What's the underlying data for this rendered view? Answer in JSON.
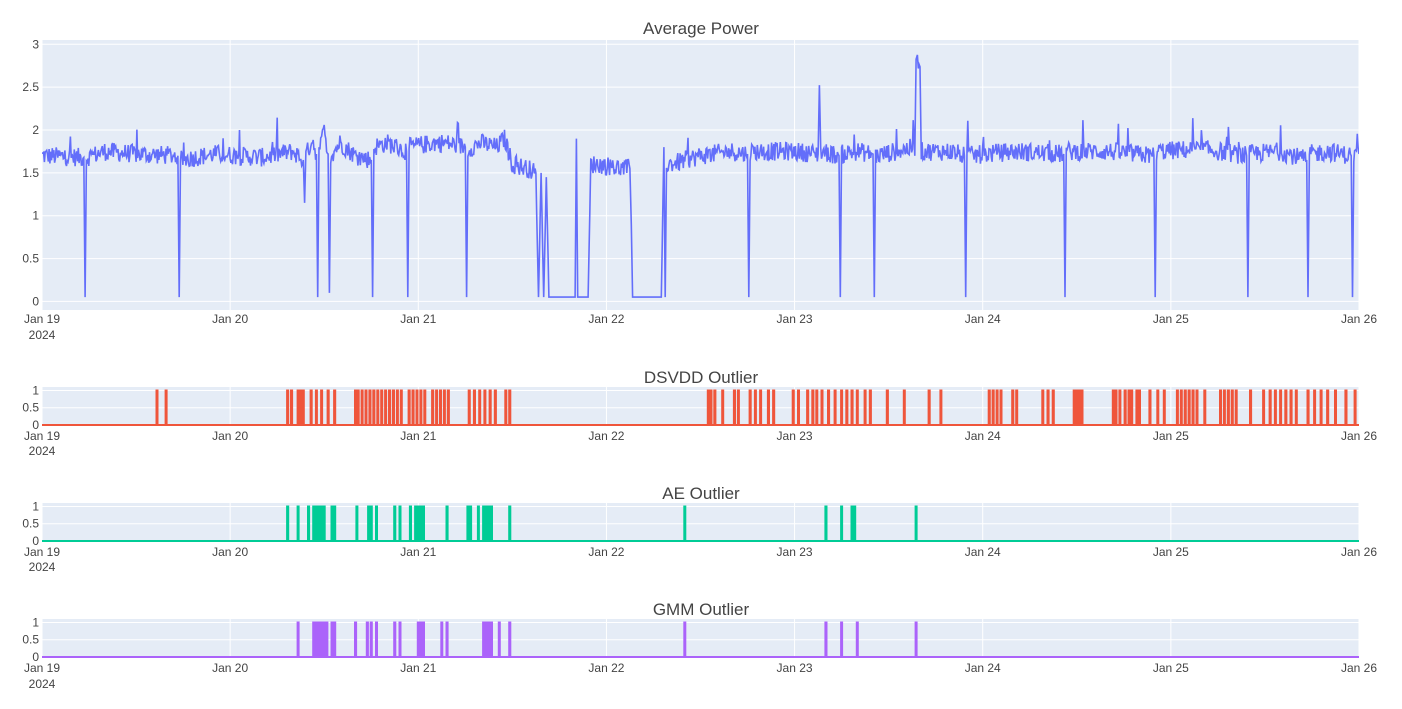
{
  "chart_data": [
    {
      "type": "line",
      "title": "Average Power",
      "xlabel": "",
      "ylabel": "",
      "x_range": [
        "2024-01-19",
        "2024-01-26"
      ],
      "x_ticks": [
        "Jan 19",
        "Jan 20",
        "Jan 21",
        "Jan 22",
        "Jan 23",
        "Jan 24",
        "Jan 25",
        "Jan 26"
      ],
      "x_year_label": "2024",
      "y_range": [
        -0.1,
        3.05
      ],
      "y_ticks": [
        0,
        0.5,
        1,
        1.5,
        2,
        2.5,
        3
      ],
      "grid": true,
      "color": "#636efa",
      "baseline_level": 1.7,
      "series": [
        {
          "points": [
            [
              "2024-01-19 00:00",
              1.7
            ],
            [
              "2024-01-19 05:20",
              1.68
            ],
            [
              "2024-01-19 05:30",
              0.05
            ],
            [
              "2024-01-19 05:40",
              1.68
            ],
            [
              "2024-01-19 08:00",
              1.75
            ],
            [
              "2024-01-19 12:00",
              1.72
            ],
            [
              "2024-01-19 17:20",
              1.7
            ],
            [
              "2024-01-19 17:30",
              0.05
            ],
            [
              "2024-01-19 17:40",
              1.65
            ],
            [
              "2024-01-19 22:00",
              1.72
            ],
            [
              "2024-01-20 04:00",
              1.68
            ],
            [
              "2024-01-20 08:00",
              1.75
            ],
            [
              "2024-01-20 09:20",
              1.65
            ],
            [
              "2024-01-20 09:30",
              1.15
            ],
            [
              "2024-01-20 09:40",
              1.7
            ],
            [
              "2024-01-20 10:30",
              1.9
            ],
            [
              "2024-01-20 11:00",
              1.72
            ],
            [
              "2024-01-20 11:10",
              0.05
            ],
            [
              "2024-01-20 11:20",
              1.75
            ],
            [
              "2024-01-20 12:00",
              2.0
            ],
            [
              "2024-01-20 12:30",
              1.72
            ],
            [
              "2024-01-20 12:40",
              0.1
            ],
            [
              "2024-01-20 12:50",
              1.7
            ],
            [
              "2024-01-20 14:00",
              1.85
            ],
            [
              "2024-01-20 16:00",
              1.7
            ],
            [
              "2024-01-20 18:00",
              1.65
            ],
            [
              "2024-01-20 18:10",
              0.05
            ],
            [
              "2024-01-20 18:20",
              1.8
            ],
            [
              "2024-01-20 20:00",
              1.85
            ],
            [
              "2024-01-20 22:30",
              1.75
            ],
            [
              "2024-01-20 22:40",
              0.05
            ],
            [
              "2024-01-20 22:50",
              1.8
            ],
            [
              "2024-01-21 02:00",
              1.85
            ],
            [
              "2024-01-21 03:30",
              1.85
            ],
            [
              "2024-01-21 06:00",
              1.8
            ],
            [
              "2024-01-21 06:10",
              0.05
            ],
            [
              "2024-01-21 06:20",
              1.78
            ],
            [
              "2024-01-21 08:00",
              1.85
            ],
            [
              "2024-01-21 10:00",
              1.8
            ],
            [
              "2024-01-21 11:00",
              1.9
            ],
            [
              "2024-01-21 12:00",
              1.6
            ],
            [
              "2024-01-21 14:00",
              1.55
            ],
            [
              "2024-01-21 15:00",
              1.5
            ],
            [
              "2024-01-21 15:20",
              0.05
            ],
            [
              "2024-01-21 15:40",
              1.5
            ],
            [
              "2024-01-21 16:00",
              0.05
            ],
            [
              "2024-01-21 16:20",
              1.45
            ],
            [
              "2024-01-21 16:40",
              0.05
            ],
            [
              "2024-01-21 19:00",
              0.05
            ],
            [
              "2024-01-21 20:00",
              0.05
            ],
            [
              "2024-01-21 20:10",
              1.9
            ],
            [
              "2024-01-21 20:20",
              0.05
            ],
            [
              "2024-01-21 21:40",
              0.05
            ],
            [
              "2024-01-21 22:00",
              1.6
            ],
            [
              "2024-01-21 23:00",
              1.6
            ],
            [
              "2024-01-22 02:00",
              1.55
            ],
            [
              "2024-01-22 03:00",
              1.55
            ],
            [
              "2024-01-22 03:10",
              0.9
            ],
            [
              "2024-01-22 03:20",
              0.05
            ],
            [
              "2024-01-22 05:00",
              0.05
            ],
            [
              "2024-01-22 07:00",
              0.05
            ],
            [
              "2024-01-22 07:20",
              1.8
            ],
            [
              "2024-01-22 07:30",
              0.05
            ],
            [
              "2024-01-22 07:40",
              1.6
            ],
            [
              "2024-01-22 09:00",
              1.62
            ],
            [
              "2024-01-22 12:00",
              1.7
            ],
            [
              "2024-01-22 16:00",
              1.75
            ],
            [
              "2024-01-22 18:00",
              1.72
            ],
            [
              "2024-01-22 18:10",
              0.05
            ],
            [
              "2024-01-22 18:20",
              1.75
            ],
            [
              "2024-01-23 00:00",
              1.75
            ],
            [
              "2024-01-23 03:00",
              1.72
            ],
            [
              "2024-01-23 03:10",
              2.55
            ],
            [
              "2024-01-23 03:20",
              1.75
            ],
            [
              "2024-01-23 05:40",
              1.7
            ],
            [
              "2024-01-23 05:50",
              0.05
            ],
            [
              "2024-01-23 06:00",
              1.72
            ],
            [
              "2024-01-23 08:00",
              1.75
            ],
            [
              "2024-01-23 10:00",
              1.72
            ],
            [
              "2024-01-23 10:10",
              0.05
            ],
            [
              "2024-01-23 10:20",
              1.7
            ],
            [
              "2024-01-23 13:00",
              1.75
            ],
            [
              "2024-01-23 15:20",
              1.8
            ],
            [
              "2024-01-23 15:30",
              2.92
            ],
            [
              "2024-01-23 15:40",
              2.8
            ],
            [
              "2024-01-23 16:00",
              2.8
            ],
            [
              "2024-01-23 16:10",
              1.75
            ],
            [
              "2024-01-23 20:00",
              1.75
            ],
            [
              "2024-01-23 21:40",
              1.7
            ],
            [
              "2024-01-23 21:50",
              0.05
            ],
            [
              "2024-01-23 22:00",
              1.7
            ],
            [
              "2024-01-24 04:00",
              1.75
            ],
            [
              "2024-01-24 10:20",
              1.72
            ],
            [
              "2024-01-24 10:30",
              0.05
            ],
            [
              "2024-01-24 10:40",
              1.75
            ],
            [
              "2024-01-24 16:00",
              1.75
            ],
            [
              "2024-01-24 21:50",
              1.7
            ],
            [
              "2024-01-24 22:00",
              0.05
            ],
            [
              "2024-01-24 22:10",
              1.75
            ],
            [
              "2024-01-25 04:00",
              1.78
            ],
            [
              "2024-01-25 09:40",
              1.7
            ],
            [
              "2024-01-25 09:50",
              0.05
            ],
            [
              "2024-01-25 10:00",
              1.72
            ],
            [
              "2024-01-25 14:00",
              1.75
            ],
            [
              "2024-01-25 17:20",
              1.65
            ],
            [
              "2024-01-25 17:30",
              0.05
            ],
            [
              "2024-01-25 17:40",
              1.72
            ],
            [
              "2024-01-25 20:00",
              1.75
            ],
            [
              "2024-01-25 23:00",
              1.7
            ],
            [
              "2024-01-25 23:10",
              0.05
            ],
            [
              "2024-01-25 23:20",
              1.72
            ],
            [
              "2024-01-26 00:00",
              1.72
            ]
          ]
        }
      ]
    },
    {
      "type": "line",
      "title": "DSVDD Outlier",
      "x_range": [
        "2024-01-19",
        "2024-01-26"
      ],
      "x_ticks": [
        "Jan 19",
        "Jan 20",
        "Jan 21",
        "Jan 22",
        "Jan 23",
        "Jan 24",
        "Jan 25",
        "Jan 26"
      ],
      "x_year_label": "2024",
      "y_range": [
        0,
        1.1
      ],
      "y_ticks": [
        0,
        0.5,
        1
      ],
      "grid": true,
      "color": "#ef553b",
      "outlier_times": [
        "2024-01-19 14:40",
        "2024-01-19 15:50",
        "2024-01-20 07:20",
        "2024-01-20 07:50",
        "2024-01-20 08:40",
        "2024-01-20 09:00",
        "2024-01-20 09:20",
        "2024-01-20 10:20",
        "2024-01-20 11:00",
        "2024-01-20 11:40",
        "2024-01-20 12:30",
        "2024-01-20 13:20",
        "2024-01-20 16:00",
        "2024-01-20 16:20",
        "2024-01-20 16:50",
        "2024-01-20 17:20",
        "2024-01-20 17:50",
        "2024-01-20 18:20",
        "2024-01-20 18:50",
        "2024-01-20 19:20",
        "2024-01-20 19:50",
        "2024-01-20 20:20",
        "2024-01-20 20:50",
        "2024-01-20 21:20",
        "2024-01-20 21:50",
        "2024-01-20 22:50",
        "2024-01-20 23:20",
        "2024-01-20 23:50",
        "2024-01-21 00:20",
        "2024-01-21 00:50",
        "2024-01-21 01:50",
        "2024-01-21 02:20",
        "2024-01-21 02:50",
        "2024-01-21 03:20",
        "2024-01-21 03:50",
        "2024-01-21 06:30",
        "2024-01-21 07:10",
        "2024-01-21 07:50",
        "2024-01-21 08:30",
        "2024-01-21 09:10",
        "2024-01-21 09:50",
        "2024-01-21 11:10",
        "2024-01-21 11:40",
        "2024-01-22 13:00",
        "2024-01-22 13:20",
        "2024-01-22 13:50",
        "2024-01-22 14:50",
        "2024-01-22 16:20",
        "2024-01-22 16:50",
        "2024-01-22 18:20",
        "2024-01-22 19:00",
        "2024-01-22 19:40",
        "2024-01-22 20:40",
        "2024-01-22 21:20",
        "2024-01-22 23:50",
        "2024-01-23 00:30",
        "2024-01-23 01:40",
        "2024-01-23 02:20",
        "2024-01-23 02:50",
        "2024-01-23 03:30",
        "2024-01-23 04:20",
        "2024-01-23 05:10",
        "2024-01-23 06:00",
        "2024-01-23 06:40",
        "2024-01-23 07:20",
        "2024-01-23 08:00",
        "2024-01-23 09:00",
        "2024-01-23 09:40",
        "2024-01-23 11:50",
        "2024-01-23 14:00",
        "2024-01-23 17:10",
        "2024-01-23 18:40",
        "2024-01-24 00:50",
        "2024-01-24 01:20",
        "2024-01-24 01:50",
        "2024-01-24 02:20",
        "2024-01-24 03:50",
        "2024-01-24 04:20",
        "2024-01-24 07:40",
        "2024-01-24 08:20",
        "2024-01-24 09:00",
        "2024-01-24 11:40",
        "2024-01-24 12:00",
        "2024-01-24 12:20",
        "2024-01-24 12:40",
        "2024-01-24 16:40",
        "2024-01-24 17:00",
        "2024-01-24 17:30",
        "2024-01-24 18:10",
        "2024-01-24 18:40",
        "2024-01-24 19:00",
        "2024-01-24 19:40",
        "2024-01-24 20:00",
        "2024-01-24 21:20",
        "2024-01-24 22:20",
        "2024-01-24 23:10",
        "2024-01-25 00:50",
        "2024-01-25 01:20",
        "2024-01-25 01:50",
        "2024-01-25 02:20",
        "2024-01-25 02:50",
        "2024-01-25 03:20",
        "2024-01-25 04:20",
        "2024-01-25 06:20",
        "2024-01-25 06:50",
        "2024-01-25 07:20",
        "2024-01-25 07:50",
        "2024-01-25 08:20",
        "2024-01-25 10:10",
        "2024-01-25 11:50",
        "2024-01-25 12:40",
        "2024-01-25 13:20",
        "2024-01-25 14:00",
        "2024-01-25 14:40",
        "2024-01-25 15:20",
        "2024-01-25 16:00",
        "2024-01-25 17:30",
        "2024-01-25 18:20",
        "2024-01-25 19:10",
        "2024-01-25 20:00",
        "2024-01-25 21:00",
        "2024-01-25 22:20",
        "2024-01-25 23:30"
      ]
    },
    {
      "type": "line",
      "title": "AE Outlier",
      "x_range": [
        "2024-01-19",
        "2024-01-26"
      ],
      "x_ticks": [
        "Jan 19",
        "Jan 20",
        "Jan 21",
        "Jan 22",
        "Jan 23",
        "Jan 24",
        "Jan 25",
        "Jan 26"
      ],
      "x_year_label": "2024",
      "y_range": [
        0,
        1.1
      ],
      "y_ticks": [
        0,
        0.5,
        1
      ],
      "grid": true,
      "color": "#00cc96",
      "outlier_times": [
        "2024-01-20 07:20",
        "2024-01-20 08:40",
        "2024-01-20 10:00",
        "2024-01-20 10:40",
        "2024-01-20 11:00",
        "2024-01-20 11:20",
        "2024-01-20 11:40",
        "2024-01-20 12:00",
        "2024-01-20 13:00",
        "2024-01-20 13:20",
        "2024-01-20 16:10",
        "2024-01-20 17:40",
        "2024-01-20 18:00",
        "2024-01-20 18:40",
        "2024-01-20 21:00",
        "2024-01-20 21:40",
        "2024-01-20 23:00",
        "2024-01-20 23:40",
        "2024-01-21 00:00",
        "2024-01-21 00:20",
        "2024-01-21 00:40",
        "2024-01-21 03:40",
        "2024-01-21 06:20",
        "2024-01-21 06:40",
        "2024-01-21 07:40",
        "2024-01-21 08:20",
        "2024-01-21 08:40",
        "2024-01-21 09:00",
        "2024-01-21 09:20",
        "2024-01-21 11:40",
        "2024-01-22 10:00",
        "2024-01-23 04:00",
        "2024-01-23 06:00",
        "2024-01-23 07:20",
        "2024-01-23 07:40",
        "2024-01-23 15:30"
      ]
    },
    {
      "type": "line",
      "title": "GMM Outlier",
      "x_range": [
        "2024-01-19",
        "2024-01-26"
      ],
      "x_ticks": [
        "Jan 19",
        "Jan 20",
        "Jan 21",
        "Jan 22",
        "Jan 23",
        "Jan 24",
        "Jan 25",
        "Jan 26"
      ],
      "x_year_label": "2024",
      "y_range": [
        0,
        1.1
      ],
      "y_ticks": [
        0,
        0.5,
        1
      ],
      "grid": true,
      "color": "#ab63fa",
      "outlier_times": [
        "2024-01-20 08:40",
        "2024-01-20 10:40",
        "2024-01-20 11:00",
        "2024-01-20 11:20",
        "2024-01-20 11:40",
        "2024-01-20 12:00",
        "2024-01-20 12:20",
        "2024-01-20 13:00",
        "2024-01-20 13:20",
        "2024-01-20 16:00",
        "2024-01-20 17:30",
        "2024-01-20 18:00",
        "2024-01-20 18:40",
        "2024-01-20 21:00",
        "2024-01-20 21:40",
        "2024-01-21 00:00",
        "2024-01-21 00:20",
        "2024-01-21 00:40",
        "2024-01-21 03:00",
        "2024-01-21 03:40",
        "2024-01-21 08:20",
        "2024-01-21 08:40",
        "2024-01-21 09:00",
        "2024-01-21 09:20",
        "2024-01-21 10:20",
        "2024-01-21 11:40",
        "2024-01-22 10:00",
        "2024-01-23 04:00",
        "2024-01-23 06:00",
        "2024-01-23 08:00",
        "2024-01-23 15:30"
      ]
    }
  ]
}
